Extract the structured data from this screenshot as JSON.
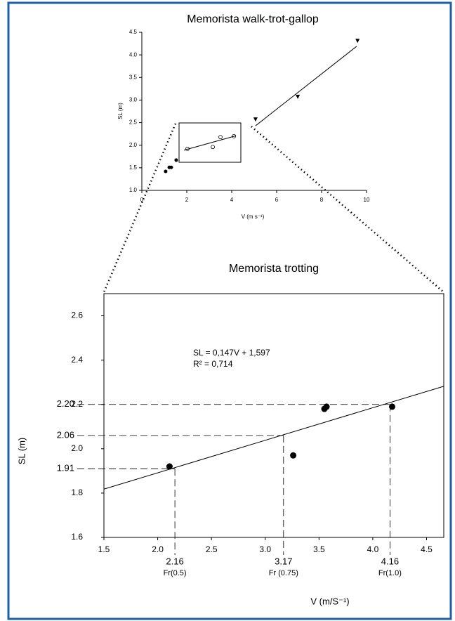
{
  "chart_data": [
    {
      "type": "scatter",
      "title": "Memorista walk-trot-gallop",
      "x_label": "V (m s⁻¹)",
      "y_label": "SL (m)",
      "xlim": [
        0,
        10
      ],
      "ylim": [
        1,
        4.5
      ],
      "xticks": [
        0,
        2,
        4,
        6,
        8,
        10
      ],
      "yticks": [
        {
          "value": 1,
          "label": "1.0"
        },
        1.5,
        {
          "value": 2,
          "label": "2.0"
        },
        2.5,
        {
          "value": 3,
          "label": "3.0"
        },
        3.5,
        {
          "value": 4,
          "label": "4.0"
        },
        4.5
      ],
      "series": [
        {
          "marker": "dot",
          "color": "#000000",
          "x": [
            1.06,
            1.22,
            1.31,
            1.53
          ],
          "values": [
            1.42,
            1.51,
            1.51,
            1.67
          ]
        },
        {
          "marker": "open-circle",
          "color": "#000000",
          "x": [
            2.03,
            3.16,
            3.5,
            4.1
          ],
          "values": [
            1.92,
            1.96,
            2.18,
            2.2
          ]
        },
        {
          "marker": "line",
          "color": "#000000",
          "x": [
            1.88,
            4.19
          ],
          "values": [
            1.89,
            2.21
          ]
        },
        {
          "marker": "triangle",
          "color": "#000000",
          "x": [
            5.06,
            6.94,
            9.6
          ],
          "values": [
            2.57,
            3.07,
            4.31
          ]
        },
        {
          "marker": "line",
          "color": "#000000",
          "x": [
            5.06,
            9.56
          ],
          "values": [
            2.43,
            4.19
          ]
        }
      ]
    },
    {
      "type": "scatter",
      "title": "Memorista trotting",
      "x_label": "V (m/S⁻¹)",
      "y_label": "SL (m)",
      "xlim": [
        1.5,
        4.66
      ],
      "ylim": [
        1.6,
        2.7
      ],
      "xticks": [
        1.5,
        {
          "value": 2,
          "label": "2.0"
        },
        2.5,
        {
          "value": 3,
          "label": "3.0"
        },
        3.5,
        {
          "value": 4,
          "label": "4.0"
        },
        4.5
      ],
      "yticks": [
        1.6,
        1.8,
        {
          "value": 2,
          "label": "2.0"
        },
        2.2,
        2.4,
        2.6
      ],
      "annotations": [
        "SL = 0,147V + 1,597",
        "R² = 0,714"
      ],
      "series": [
        {
          "marker": "big-dot",
          "color": "#000000",
          "x": [
            2.11,
            3.26,
            3.55,
            3.57,
            4.18
          ],
          "values": [
            1.92,
            1.97,
            2.18,
            2.19,
            2.19
          ]
        },
        {
          "marker": "line",
          "color": "#000000",
          "x": [
            1.5,
            4.66
          ],
          "values": [
            1.818,
            2.282
          ]
        }
      ],
      "reference_lines": [
        {
          "sl": 1.91,
          "v": 2.16,
          "fr": "Fr(0.5)"
        },
        {
          "sl": 2.06,
          "v": 3.17,
          "fr": "Fr (0.75)"
        },
        {
          "sl": {
            "value": 2.2,
            "label": "2.20"
          },
          "v": 4.16,
          "fr": "Fr(1.0)"
        }
      ]
    }
  ]
}
